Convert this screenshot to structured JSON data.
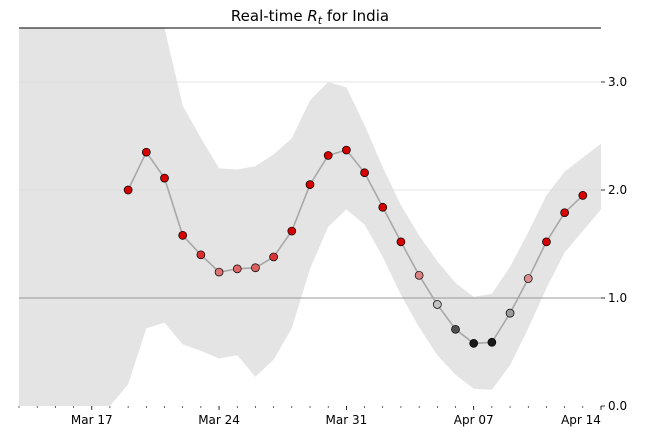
{
  "chart_data": {
    "type": "line",
    "title_prefix": "Real-time ",
    "title_symbol": "R",
    "title_subscript": "t",
    "title_suffix": " for India",
    "xlabel": "",
    "ylabel": "",
    "x_range": [
      "2020-03-13",
      "2020-04-14"
    ],
    "ylim": [
      0.0,
      3.5
    ],
    "y_ticks": [
      0.0,
      1.0,
      2.0,
      3.0
    ],
    "y_tick_labels": [
      "0.0",
      "1.0",
      "2.0",
      "3.0"
    ],
    "x_ticks": [
      {
        "date": "2020-03-17",
        "label": "Mar 17"
      },
      {
        "date": "2020-03-24",
        "label": "Mar 24"
      },
      {
        "date": "2020-03-31",
        "label": "Mar 31"
      },
      {
        "date": "2020-04-07",
        "label": "Apr 07"
      },
      {
        "date": "2020-04-14",
        "label": "Apr 14"
      }
    ],
    "reference_line": 1.0,
    "grid": "horizontal",
    "y_axis_side": "right",
    "colors": {
      "band": "#e4e4e4",
      "line": "#a8a8a8",
      "gridline": "#dddddd",
      "reference": "#999999",
      "high": "#d60000",
      "low": "#1a1a1a",
      "neutral": "#e0e0e0"
    },
    "band": [
      {
        "date": "2020-03-13",
        "lower": 0.0,
        "upper": 3.5
      },
      {
        "date": "2020-03-18",
        "lower": 0.0,
        "upper": 3.5
      },
      {
        "date": "2020-03-19",
        "lower": 0.2,
        "upper": 3.5
      },
      {
        "date": "2020-03-20",
        "lower": 0.72,
        "upper": 3.5
      },
      {
        "date": "2020-03-21",
        "lower": 0.77,
        "upper": 3.5
      },
      {
        "date": "2020-03-22",
        "lower": 0.57,
        "upper": 2.78
      },
      {
        "date": "2020-03-23",
        "lower": 0.51,
        "upper": 2.48
      },
      {
        "date": "2020-03-24",
        "lower": 0.44,
        "upper": 2.2
      },
      {
        "date": "2020-03-25",
        "lower": 0.47,
        "upper": 2.19
      },
      {
        "date": "2020-03-26",
        "lower": 0.27,
        "upper": 2.22
      },
      {
        "date": "2020-03-27",
        "lower": 0.43,
        "upper": 2.33
      },
      {
        "date": "2020-03-28",
        "lower": 0.72,
        "upper": 2.48
      },
      {
        "date": "2020-03-29",
        "lower": 1.27,
        "upper": 2.83
      },
      {
        "date": "2020-03-30",
        "lower": 1.66,
        "upper": 3.0
      },
      {
        "date": "2020-03-31",
        "lower": 1.82,
        "upper": 2.95
      },
      {
        "date": "2020-04-01",
        "lower": 1.68,
        "upper": 2.6
      },
      {
        "date": "2020-04-02",
        "lower": 1.38,
        "upper": 2.21
      },
      {
        "date": "2020-04-03",
        "lower": 1.03,
        "upper": 1.86
      },
      {
        "date": "2020-04-04",
        "lower": 0.73,
        "upper": 1.58
      },
      {
        "date": "2020-04-05",
        "lower": 0.47,
        "upper": 1.34
      },
      {
        "date": "2020-04-06",
        "lower": 0.29,
        "upper": 1.14
      },
      {
        "date": "2020-04-07",
        "lower": 0.16,
        "upper": 1.01
      },
      {
        "date": "2020-04-08",
        "lower": 0.15,
        "upper": 1.04
      },
      {
        "date": "2020-04-09",
        "lower": 0.38,
        "upper": 1.29
      },
      {
        "date": "2020-04-10",
        "lower": 0.72,
        "upper": 1.61
      },
      {
        "date": "2020-04-11",
        "lower": 1.09,
        "upper": 1.95
      },
      {
        "date": "2020-04-12",
        "lower": 1.42,
        "upper": 2.17
      },
      {
        "date": "2020-04-13",
        "lower": 1.62,
        "upper": 2.3
      },
      {
        "date": "2020-04-14",
        "lower": 1.82,
        "upper": 2.43
      }
    ],
    "points": [
      {
        "date": "2020-03-19",
        "value": 2.0
      },
      {
        "date": "2020-03-20",
        "value": 2.35
      },
      {
        "date": "2020-03-21",
        "value": 2.11
      },
      {
        "date": "2020-03-22",
        "value": 1.58
      },
      {
        "date": "2020-03-23",
        "value": 1.4
      },
      {
        "date": "2020-03-24",
        "value": 1.24
      },
      {
        "date": "2020-03-25",
        "value": 1.27
      },
      {
        "date": "2020-03-26",
        "value": 1.28
      },
      {
        "date": "2020-03-27",
        "value": 1.38
      },
      {
        "date": "2020-03-28",
        "value": 1.62
      },
      {
        "date": "2020-03-29",
        "value": 2.05
      },
      {
        "date": "2020-03-30",
        "value": 2.32
      },
      {
        "date": "2020-03-31",
        "value": 2.37
      },
      {
        "date": "2020-04-01",
        "value": 2.16
      },
      {
        "date": "2020-04-02",
        "value": 1.84
      },
      {
        "date": "2020-04-03",
        "value": 1.52
      },
      {
        "date": "2020-04-04",
        "value": 1.21
      },
      {
        "date": "2020-04-05",
        "value": 0.94
      },
      {
        "date": "2020-04-06",
        "value": 0.71
      },
      {
        "date": "2020-04-07",
        "value": 0.58
      },
      {
        "date": "2020-04-08",
        "value": 0.59
      },
      {
        "date": "2020-04-09",
        "value": 0.86
      },
      {
        "date": "2020-04-10",
        "value": 1.18
      },
      {
        "date": "2020-04-11",
        "value": 1.52
      },
      {
        "date": "2020-04-12",
        "value": 1.79
      },
      {
        "date": "2020-04-13",
        "value": 1.95
      }
    ]
  }
}
